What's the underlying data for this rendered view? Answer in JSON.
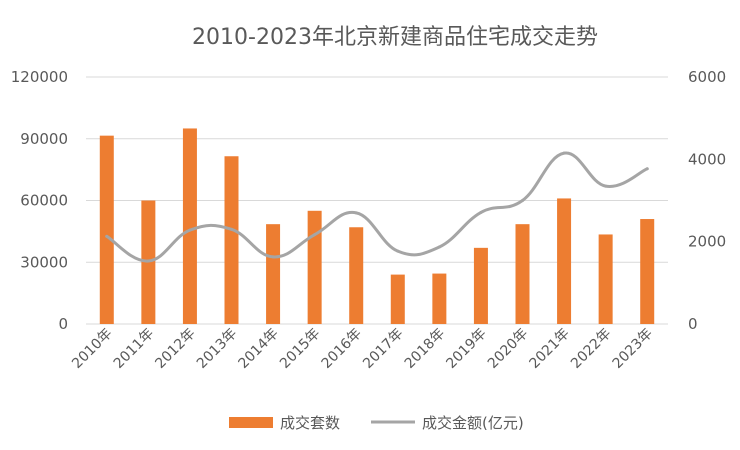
{
  "chart_data": {
    "type": "bar+line",
    "title": "2010-2023年北京新建商品住宅成交走势",
    "categories": [
      "2010年",
      "2011年",
      "2012年",
      "2013年",
      "2014年",
      "2015年",
      "2016年",
      "2017年",
      "2018年",
      "2019年",
      "2020年",
      "2021年",
      "2022年",
      "2023年"
    ],
    "series": [
      {
        "name": "成交套数",
        "type": "bar",
        "axis": "left",
        "color": "#ED7D31",
        "values": [
          91500,
          60000,
          95000,
          81500,
          48500,
          55000,
          47000,
          24000,
          24500,
          37000,
          48500,
          61000,
          43500,
          51000
        ]
      },
      {
        "name": "成交金额(亿元)",
        "type": "line",
        "axis": "right",
        "color": "#A5A5A5",
        "values": [
          2130,
          1530,
          2280,
          2300,
          1630,
          2170,
          2700,
          1770,
          1870,
          2710,
          3000,
          4150,
          3350,
          3770
        ]
      }
    ],
    "y_left": {
      "min": 0,
      "max": 120000,
      "ticks": [
        "0",
        "30000",
        "60000",
        "90000",
        "120000"
      ]
    },
    "y_right": {
      "min": 0,
      "max": 6000,
      "ticks": [
        "0",
        "2000",
        "4000",
        "6000"
      ]
    },
    "grid": true,
    "legend": "bottom"
  }
}
